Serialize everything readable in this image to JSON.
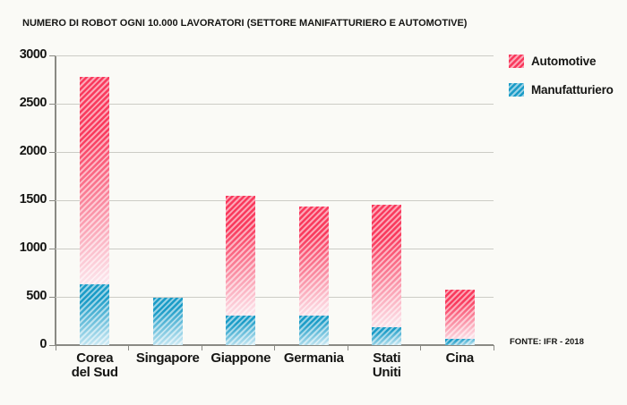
{
  "legend": [
    {
      "label": "Automotive",
      "color": "#f93a5d",
      "fade": "#fce3ea"
    },
    {
      "label": "Manufatturiero",
      "color": "#1b9cc7",
      "fade": "#cdeaf4"
    }
  ],
  "chart_data": {
    "type": "bar",
    "stacked": true,
    "title": "NUMERO DI ROBOT OGNI 10.000 LAVORATORI (SETTORE MANIFATTURIERO E AUTOMOTIVE)",
    "source": "FONTE: IFR - 2018",
    "categories": [
      "Corea del Sud",
      "Singapore",
      "Giappone",
      "Germania",
      "Stati Uniti",
      "Cina"
    ],
    "tick_labels": [
      "Corea\ndel Sud",
      "Singapore",
      "Giappone",
      "Germania",
      "Stati\nUniti",
      "Cina"
    ],
    "series": [
      {
        "name": "Manufatturiero",
        "color": "#1b9cc7",
        "fade": "#cdeaf4",
        "values": [
          631,
          488,
          303,
          309,
          189,
          68
        ]
      },
      {
        "name": "Automotive",
        "color": "#f93a5d",
        "fade": "#fce3ea",
        "values": [
          2145,
          0,
          1240,
          1131,
          1261,
          505
        ]
      }
    ],
    "stack_totals": [
      2776,
      488,
      1543,
      1440,
      1450,
      573
    ],
    "xlabel": "",
    "ylabel": "",
    "ylim": [
      0,
      3000
    ],
    "yticks": [
      0,
      500,
      1000,
      1500,
      2000,
      2500,
      3000
    ],
    "grid": true,
    "legend_position": "top-right"
  }
}
